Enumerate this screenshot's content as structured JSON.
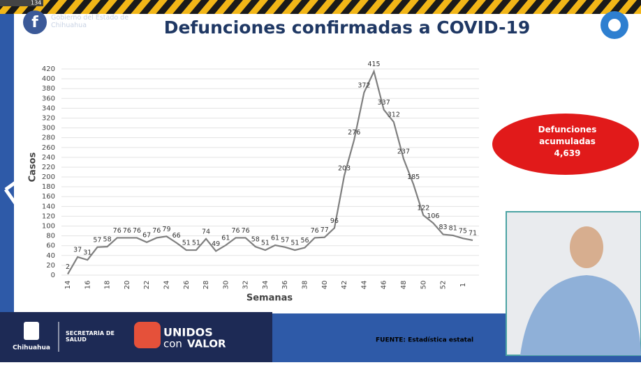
{
  "page": {
    "viewers": "134",
    "gov_name": "Gobierno del Estado de Chihuahua",
    "total_label": "Defunciones acumuladas",
    "total_value": "4,639",
    "source": "FUENTE: Estadística estatal",
    "footer_state": "Chihuahua",
    "footer_dept": "SECRETARÍA DE SALUD",
    "footer_brand_1": "UNIDOS",
    "footer_brand_2": "con",
    "footer_brand_3": "VALOR"
  },
  "chart_data": {
    "type": "line",
    "title": "Defunciones confirmadas a COVID-19",
    "x_label": "Semanas",
    "y_label": "Casos",
    "color": "#7f7f7f",
    "grid": true,
    "categories": [
      "14",
      null,
      "16",
      null,
      "18",
      null,
      "20",
      null,
      "22",
      null,
      "24",
      null,
      "26",
      null,
      "28",
      null,
      "30",
      null,
      "32",
      null,
      "34",
      null,
      "36",
      null,
      "38",
      null,
      "40",
      null,
      "42",
      null,
      "44",
      null,
      "46",
      null,
      "48",
      null,
      "50",
      null,
      "52",
      null,
      "1",
      null
    ],
    "values": [
      2,
      37,
      31,
      57,
      58,
      76,
      76,
      76,
      67,
      76,
      79,
      66,
      51,
      51,
      74,
      49,
      61,
      76,
      76,
      58,
      51,
      61,
      57,
      51,
      56,
      76,
      77,
      96,
      203,
      276,
      372,
      415,
      337,
      312,
      237,
      185,
      122,
      106,
      83,
      81,
      75,
      71
    ],
    "ylim": [
      0,
      420
    ],
    "yticks": [
      0,
      20,
      40,
      60,
      80,
      100,
      120,
      140,
      160,
      180,
      200,
      220,
      240,
      260,
      280,
      300,
      320,
      340,
      360,
      380,
      400,
      420
    ]
  }
}
